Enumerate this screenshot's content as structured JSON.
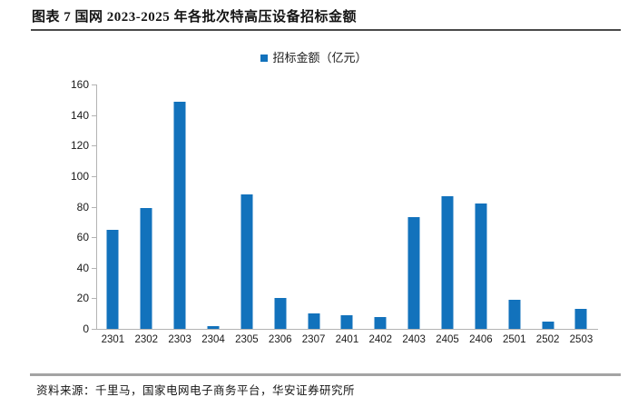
{
  "page": {
    "title": "图表 7 国网 2023-2025 年各批次特高压设备招标金额",
    "source": "资料来源：千里马，国家电网电子商务平台，华安证券研究所"
  },
  "legend": {
    "label": "招标金额（亿元）"
  },
  "colors": {
    "bar": "#1272bc",
    "axis": "#b3b3b3",
    "text": "#1a1a1a",
    "title_rule": "#4a4a4a",
    "source_rule": "#a3a3a3"
  },
  "chart_data": {
    "type": "bar",
    "title": "图表 7 国网 2023-2025 年各批次特高压设备招标金额",
    "legend": "招标金额（亿元）",
    "legend_position": "top-center",
    "categories": [
      "2301",
      "2302",
      "2303",
      "2304",
      "2305",
      "2306",
      "2307",
      "2401",
      "2402",
      "2403",
      "2405",
      "2406",
      "2501",
      "2502",
      "2503"
    ],
    "values": [
      65,
      79,
      149,
      2,
      88,
      20,
      10,
      9,
      8,
      73,
      87,
      82,
      19,
      5,
      13
    ],
    "xlabel": "",
    "ylabel": "",
    "ylim": [
      0,
      160
    ],
    "yticks": [
      0,
      20,
      40,
      60,
      80,
      100,
      120,
      140,
      160
    ],
    "grid": false
  }
}
